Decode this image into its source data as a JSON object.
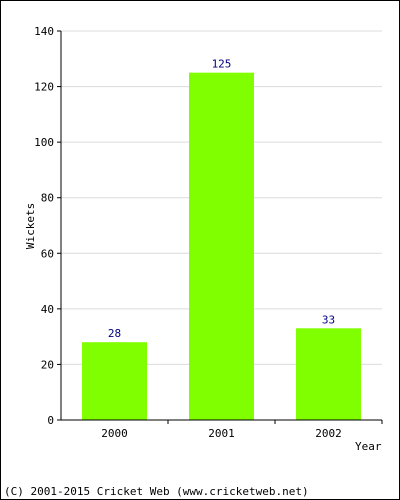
{
  "chart_data": {
    "type": "bar",
    "categories": [
      "2000",
      "2001",
      "2002"
    ],
    "values": [
      28,
      125,
      33
    ],
    "data_labels": [
      "28",
      "125",
      "33"
    ],
    "xlabel": "Year",
    "ylabel": "Wickets",
    "ylim": [
      0,
      140
    ],
    "yticks": [
      0,
      20,
      40,
      60,
      80,
      100,
      120,
      140
    ],
    "ytick_labels": [
      "0",
      "20",
      "40",
      "60",
      "80",
      "100",
      "120",
      "140"
    ],
    "grid": true,
    "legend": "none",
    "colors": {
      "bar": "#80ff00",
      "grid": "#dcdcdc",
      "axis": "#000000",
      "value_label": "#000080"
    }
  },
  "footer": {
    "copyright": "(C) 2001-2015 Cricket Web (www.cricketweb.net)"
  }
}
